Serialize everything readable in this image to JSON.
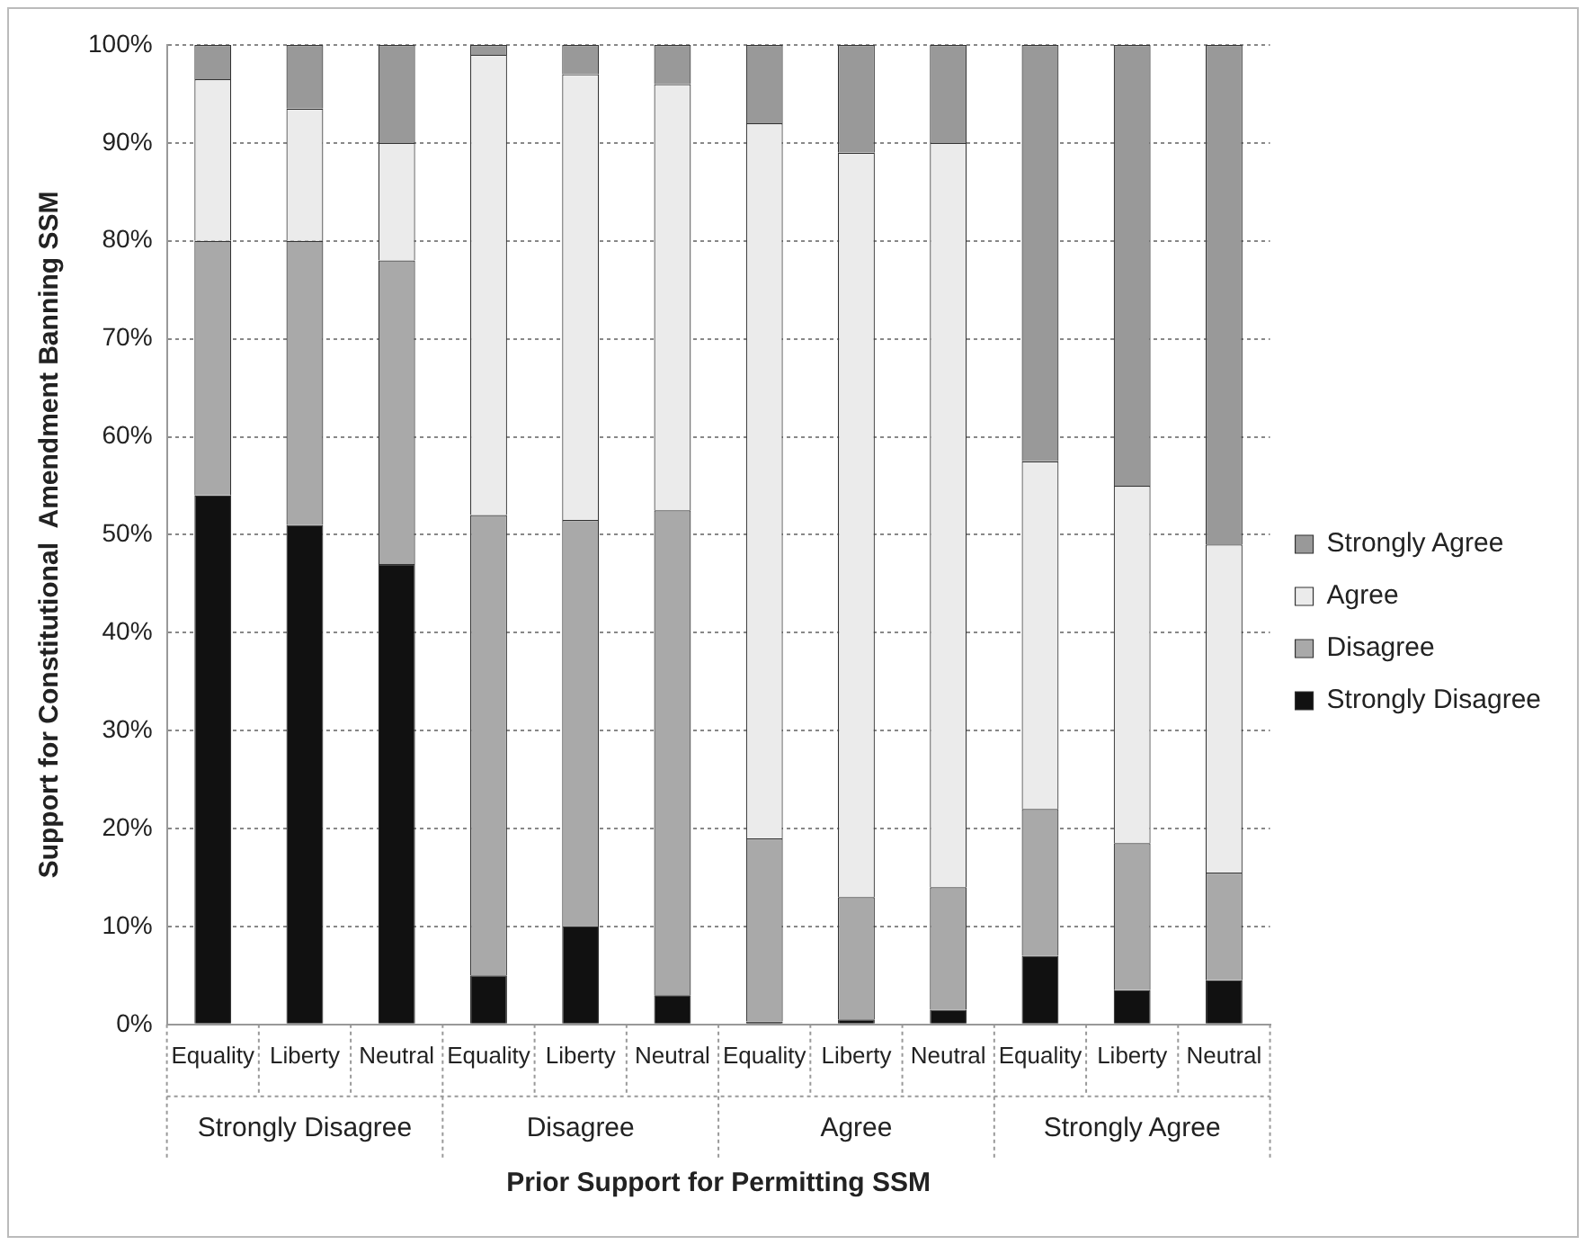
{
  "chart_data": {
    "type": "bar",
    "stacked": true,
    "xlabel": "Prior Support for Permitting SSM",
    "ylabel": "Support for Constitutional  Amendment Banning SSM",
    "categories": [
      "Equality",
      "Liberty",
      "Neutral",
      "Equality",
      "Liberty",
      "Neutral",
      "Equality",
      "Liberty",
      "Neutral",
      "Equality",
      "Liberty",
      "Neutral"
    ],
    "annotations": [
      "Strongly Disagree",
      "Disagree",
      "Agree",
      "Strongly Agree"
    ],
    "series": [
      {
        "name": "Strongly Disagree",
        "color": "#111111",
        "values": [
          54,
          51,
          47,
          5,
          10,
          3,
          0.3,
          0.5,
          1.5,
          7,
          3.5,
          4.5
        ]
      },
      {
        "name": "Disagree",
        "color": "#a9a9a9",
        "values": [
          26,
          29,
          31,
          47,
          41.5,
          49.5,
          18.7,
          12.5,
          12.5,
          15,
          15,
          11
        ]
      },
      {
        "name": "Agree",
        "color": "#ebebeb",
        "values": [
          16.5,
          13.5,
          12,
          47,
          45.5,
          43.5,
          73,
          76,
          76,
          35.5,
          36.5,
          33.5
        ]
      },
      {
        "name": "Strongly Agree",
        "color": "#999999",
        "values": [
          3.5,
          6.5,
          10,
          1,
          3,
          4,
          8,
          11,
          10,
          42.5,
          45,
          51
        ]
      }
    ],
    "ylim": [
      0,
      100
    ],
    "yticks": [
      {
        "value": 0,
        "label": "0%"
      },
      {
        "value": 10,
        "label": "10%"
      },
      {
        "value": 20,
        "label": "20%"
      },
      {
        "value": 30,
        "label": "30%"
      },
      {
        "value": 40,
        "label": "40%"
      },
      {
        "value": 50,
        "label": "50%"
      },
      {
        "value": 60,
        "label": "60%"
      },
      {
        "value": 70,
        "label": "70%"
      },
      {
        "value": 80,
        "label": "80%"
      },
      {
        "value": 90,
        "label": "90%"
      },
      {
        "value": 100,
        "label": "100%"
      }
    ],
    "grid": "y",
    "legend": "right"
  }
}
